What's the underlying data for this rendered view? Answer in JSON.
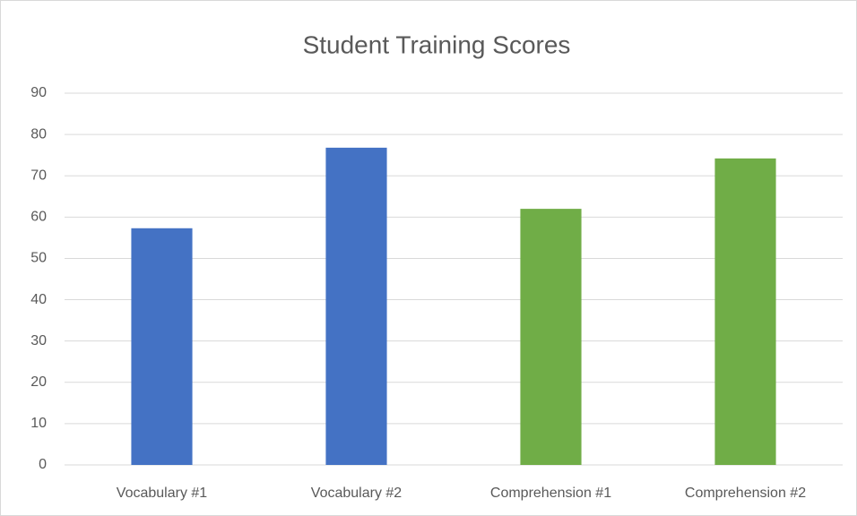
{
  "chart_data": {
    "type": "bar",
    "title": "Student Training Scores",
    "categories": [
      "Vocabulary #1",
      "Vocabulary #2",
      "Comprehension #1",
      "Comprehension #2"
    ],
    "values": [
      57.3,
      76.8,
      62.0,
      74.2
    ],
    "colors": [
      "#4472c4",
      "#4472c4",
      "#70ad47",
      "#70ad47"
    ],
    "ylim": [
      0,
      90
    ],
    "yticks": [
      0,
      10,
      20,
      30,
      40,
      50,
      60,
      70,
      80,
      90
    ],
    "grid": true
  }
}
